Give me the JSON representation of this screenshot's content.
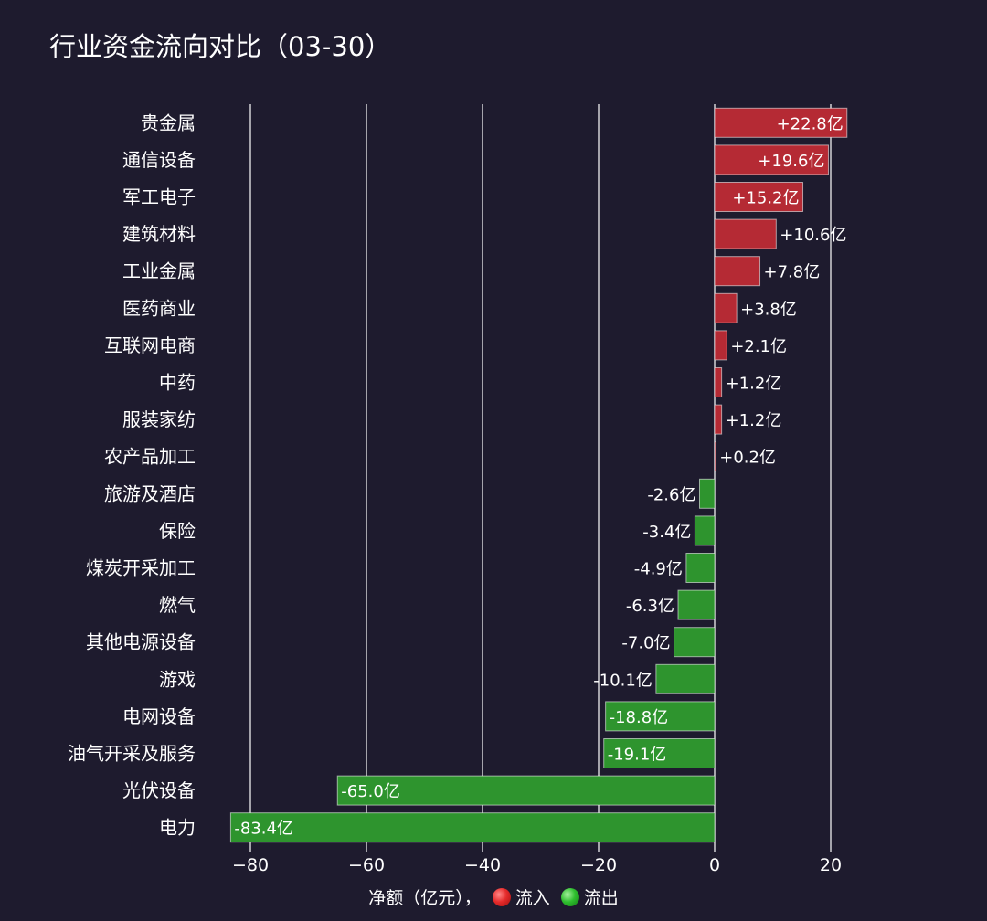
{
  "title": "行业资金流向对比（03-30）",
  "legend": {
    "xlabel": "净额（亿元），",
    "inflow_label": "流入",
    "outflow_label": "流出"
  },
  "colors": {
    "background": "#1e1b2e",
    "inflow": "#b52a34",
    "outflow": "#2e942e",
    "grid": "#ffffff",
    "text": "#ffffff"
  },
  "chart_data": {
    "type": "bar",
    "orientation": "horizontal",
    "title": "行业资金流向对比（03-30）",
    "xlabel": "净额（亿元）",
    "ylabel": "",
    "xlim": [
      -84,
      23.5
    ],
    "xticks": [
      -80,
      -60,
      -40,
      -20,
      0,
      20
    ],
    "xtick_labels": [
      "−80",
      "−60",
      "−40",
      "−20",
      "0",
      "20"
    ],
    "grid": "vertical",
    "legend_position": "bottom-center",
    "categories": [
      "贵金属",
      "通信设备",
      "军工电子",
      "建筑材料",
      "工业金属",
      "医药商业",
      "互联网电商",
      "中药",
      "服装家纺",
      "农产品加工",
      "旅游及酒店",
      "保险",
      "煤炭开采加工",
      "燃气",
      "其他电源设备",
      "游戏",
      "电网设备",
      "油气开采及服务",
      "光伏设备",
      "电力"
    ],
    "values": [
      22.8,
      19.6,
      15.2,
      10.6,
      7.8,
      3.8,
      2.1,
      1.2,
      1.2,
      0.2,
      -2.6,
      -3.4,
      -4.9,
      -6.3,
      -7.0,
      -10.1,
      -18.8,
      -19.1,
      -65.0,
      -83.4
    ],
    "labels": [
      "+22.8亿",
      "+19.6亿",
      "+15.2亿",
      "+10.6亿",
      "+7.8亿",
      "+3.8亿",
      "+2.1亿",
      "+1.2亿",
      "+1.2亿",
      "+0.2亿",
      "-2.6亿",
      "-3.4亿",
      "-4.9亿",
      "-6.3亿",
      "-7.0亿",
      "-10.1亿",
      "-18.8亿",
      "-19.1亿",
      "-65.0亿",
      "-83.4亿"
    ]
  }
}
